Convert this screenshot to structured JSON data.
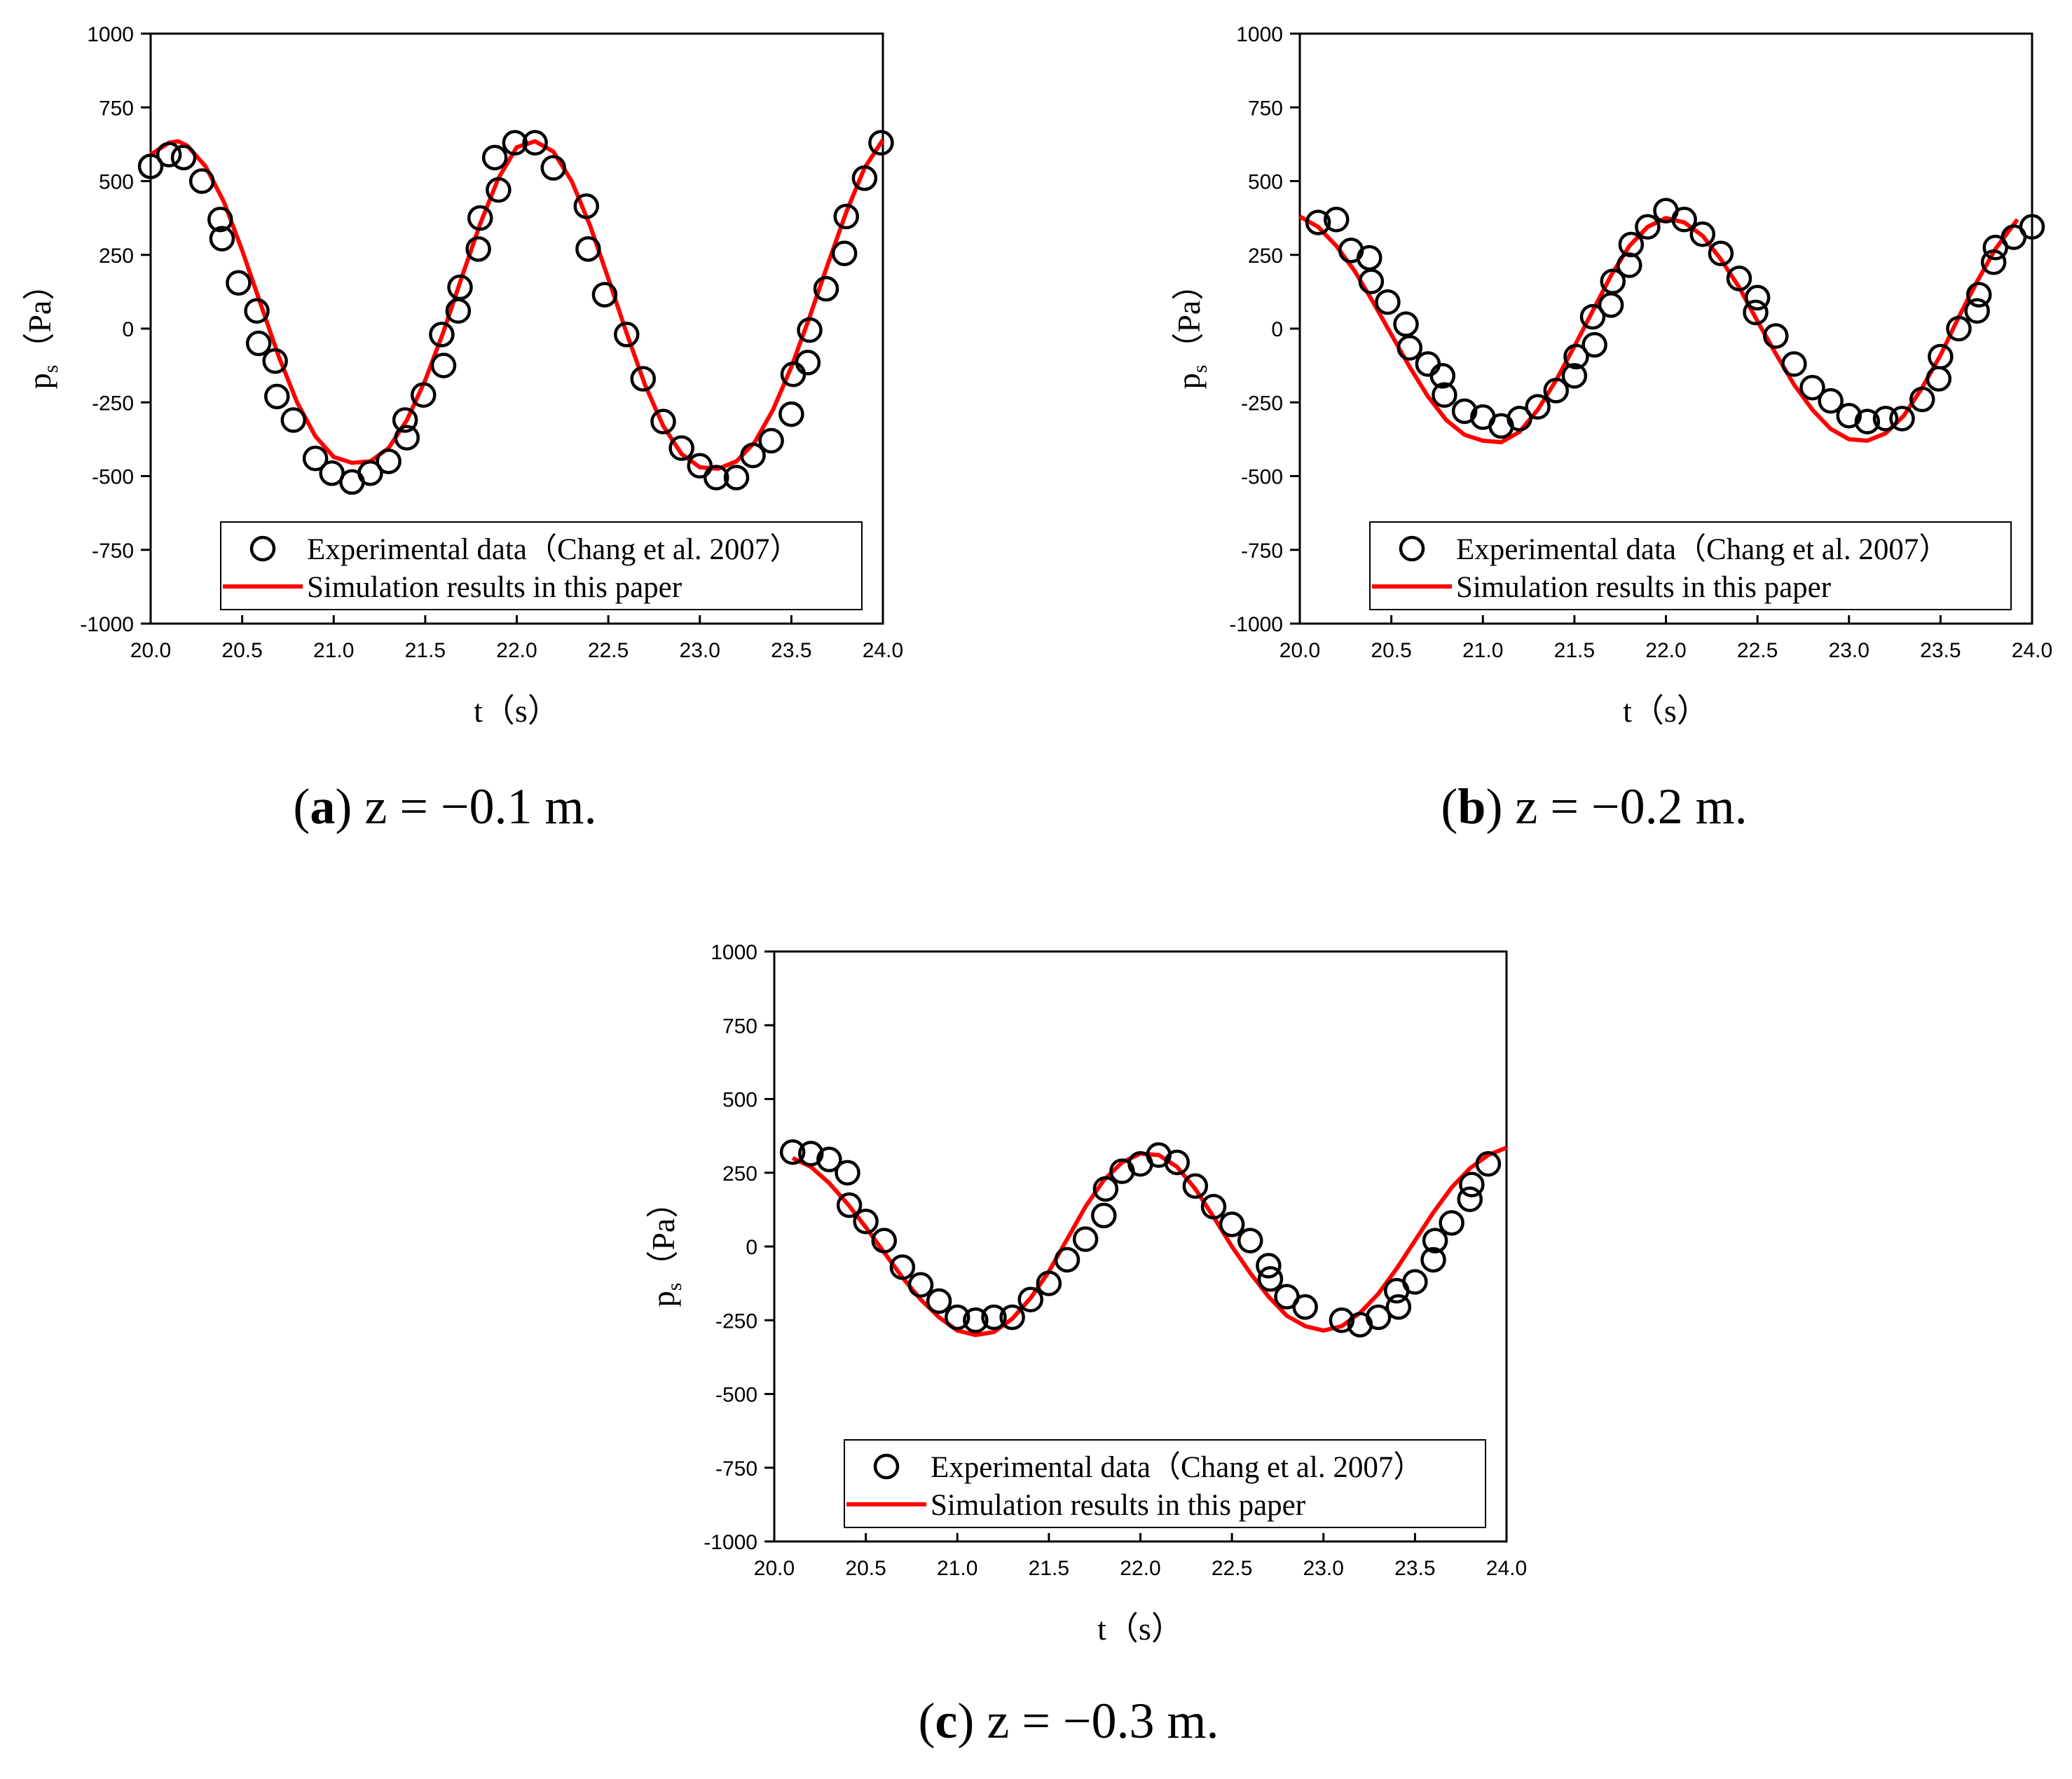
{
  "chart_data": [
    {
      "type": "line",
      "id": "a",
      "caption": {
        "label": "a",
        "text": " z = −0.1 m."
      },
      "xlabel": "t（s）",
      "ylabel_main": "p",
      "ylabel_sub": "s",
      "ylabel_unit": "（Pa）",
      "xlim": [
        20.0,
        24.0
      ],
      "ylim": [
        -1000,
        1000
      ],
      "xticks": [
        20.0,
        20.5,
        21.0,
        21.5,
        22.0,
        22.5,
        23.0,
        23.5,
        24.0
      ],
      "xtick_labels": [
        "20.0",
        "20.5",
        "21.0",
        "21.5",
        "22.0",
        "22.5",
        "23.0",
        "23.5",
        "24.0"
      ],
      "yticks": [
        -1000,
        -750,
        -500,
        -250,
        0,
        250,
        500,
        750,
        1000
      ],
      "ytick_labels": [
        "-1000",
        "-750",
        "-500",
        "-250",
        "0",
        "250",
        "500",
        "750",
        "1000"
      ],
      "legend": {
        "position": "bottom-right",
        "experimental": "Experimental data（Chang et al. 2007）",
        "simulation": "Simulation results in this paper"
      },
      "series": [
        {
          "name": "Experimental data（Chang et al. 2007）",
          "style": "markers",
          "color": "#000000",
          "x": [
            20.0,
            20.1,
            20.18,
            20.28,
            20.38,
            20.39,
            20.48,
            20.58,
            20.59,
            20.68,
            20.69,
            20.78,
            20.9,
            20.99,
            21.1,
            21.2,
            21.3,
            21.39,
            21.4,
            21.49,
            21.59,
            21.6,
            21.68,
            21.69,
            21.79,
            21.8,
            21.88,
            21.9,
            21.99,
            22.1,
            22.2,
            22.38,
            22.39,
            22.48,
            22.6,
            22.69,
            22.8,
            22.9,
            23.0,
            23.09,
            23.2,
            23.29,
            23.39,
            23.5,
            23.51,
            23.59,
            23.6,
            23.69,
            23.79,
            23.8,
            23.9,
            23.99
          ],
          "y": [
            550,
            590,
            580,
            500,
            370,
            305,
            155,
            60,
            -50,
            -110,
            -230,
            -310,
            -440,
            -490,
            -520,
            -490,
            -450,
            -310,
            -370,
            -225,
            -20,
            -125,
            60,
            140,
            270,
            375,
            580,
            470,
            630,
            630,
            545,
            415,
            270,
            115,
            -20,
            -170,
            -315,
            -405,
            -465,
            -505,
            -505,
            -430,
            -380,
            -290,
            -155,
            -115,
            -5,
            135,
            255,
            380,
            510,
            630
          ]
        },
        {
          "name": "Simulation results in this paper",
          "style": "line",
          "color": "#ff0000",
          "x": [
            20.0,
            20.1,
            20.15,
            20.2,
            20.3,
            20.4,
            20.5,
            20.6,
            20.7,
            20.8,
            20.9,
            21.0,
            21.1,
            21.2,
            21.3,
            21.4,
            21.5,
            21.6,
            21.7,
            21.8,
            21.9,
            22.0,
            22.1,
            22.2,
            22.3,
            22.4,
            22.5,
            22.6,
            22.7,
            22.8,
            22.9,
            23.0,
            23.1,
            23.2,
            23.3,
            23.4,
            23.5,
            23.6,
            23.7,
            23.8,
            23.9,
            24.0
          ],
          "y": [
            590,
            630,
            635,
            620,
            550,
            430,
            265,
            85,
            -95,
            -250,
            -365,
            -435,
            -455,
            -450,
            -405,
            -310,
            -175,
            -10,
            175,
            355,
            510,
            615,
            635,
            600,
            500,
            350,
            170,
            -15,
            -190,
            -330,
            -425,
            -470,
            -475,
            -450,
            -385,
            -275,
            -130,
            40,
            220,
            395,
            545,
            640
          ]
        }
      ]
    },
    {
      "type": "line",
      "id": "b",
      "caption": {
        "label": "b",
        "text": " z = −0.2 m."
      },
      "xlabel": "t（s）",
      "ylabel_main": "p",
      "ylabel_sub": "s",
      "ylabel_unit": "（Pa）",
      "xlim": [
        20.0,
        24.0
      ],
      "ylim": [
        -1000,
        1000
      ],
      "xticks": [
        20.0,
        20.5,
        21.0,
        21.5,
        22.0,
        22.5,
        23.0,
        23.5,
        24.0
      ],
      "xtick_labels": [
        "20.0",
        "20.5",
        "21.0",
        "21.5",
        "22.0",
        "22.5",
        "23.0",
        "23.5",
        "24.0"
      ],
      "yticks": [
        -1000,
        -750,
        -500,
        -250,
        0,
        250,
        500,
        750,
        1000
      ],
      "ytick_labels": [
        "-1000",
        "-750",
        "-500",
        "-250",
        "0",
        "250",
        "500",
        "750",
        "1000"
      ],
      "legend": {
        "position": "bottom-right",
        "experimental": "Experimental data（Chang et al. 2007）",
        "simulation": "Simulation results in this paper"
      },
      "series": [
        {
          "name": "Experimental data（Chang et al. 2007）",
          "style": "markers",
          "color": "#000000",
          "x": [
            20.1,
            20.2,
            20.28,
            20.38,
            20.39,
            20.48,
            20.58,
            20.6,
            20.7,
            20.78,
            20.79,
            20.9,
            21.0,
            21.1,
            21.2,
            21.3,
            21.4,
            21.5,
            21.51,
            21.6,
            21.61,
            21.7,
            21.71,
            21.8,
            21.81,
            21.9,
            22.0,
            22.1,
            22.2,
            22.3,
            22.4,
            22.49,
            22.5,
            22.6,
            22.7,
            22.8,
            22.9,
            23.0,
            23.1,
            23.2,
            23.29,
            23.4,
            23.49,
            23.5,
            23.6,
            23.7,
            23.71,
            23.79,
            23.8,
            23.9,
            24.0
          ],
          "y": [
            360,
            370,
            265,
            240,
            160,
            90,
            15,
            -65,
            -120,
            -160,
            -225,
            -280,
            -300,
            -330,
            -305,
            -265,
            -210,
            -160,
            -95,
            40,
            -55,
            80,
            160,
            215,
            285,
            345,
            400,
            370,
            320,
            255,
            170,
            55,
            105,
            -25,
            -120,
            -200,
            -245,
            -295,
            -315,
            -305,
            -305,
            -240,
            -170,
            -95,
            0,
            60,
            115,
            225,
            275,
            310,
            345
          ]
        },
        {
          "name": "Simulation results in this paper",
          "style": "line",
          "color": "#ff0000",
          "x": [
            20.0,
            20.1,
            20.2,
            20.3,
            20.4,
            20.5,
            20.6,
            20.7,
            20.8,
            20.9,
            21.0,
            21.1,
            21.2,
            21.3,
            21.4,
            21.5,
            21.6,
            21.7,
            21.8,
            21.9,
            22.0,
            22.1,
            22.2,
            22.3,
            22.4,
            22.5,
            22.6,
            22.7,
            22.8,
            22.9,
            23.0,
            23.1,
            23.2,
            23.3,
            23.4,
            23.5,
            23.6,
            23.7,
            23.8,
            23.92
          ],
          "y": [
            380,
            345,
            280,
            195,
            90,
            -20,
            -130,
            -230,
            -310,
            -360,
            -380,
            -385,
            -350,
            -275,
            -175,
            -60,
            60,
            180,
            280,
            345,
            375,
            360,
            315,
            235,
            140,
            25,
            -85,
            -190,
            -275,
            -340,
            -375,
            -380,
            -355,
            -295,
            -200,
            -90,
            40,
            160,
            270,
            370
          ]
        }
      ]
    },
    {
      "type": "line",
      "id": "c",
      "caption": {
        "label": "c",
        "text": " z = −0.3 m."
      },
      "xlabel": "t（s）",
      "ylabel_main": "p",
      "ylabel_sub": "s",
      "ylabel_unit": "（Pa）",
      "xlim": [
        20.0,
        24.0
      ],
      "ylim": [
        -1000,
        1000
      ],
      "xticks": [
        20.0,
        20.5,
        21.0,
        21.5,
        22.0,
        22.5,
        23.0,
        23.5,
        24.0
      ],
      "xtick_labels": [
        "20.0",
        "20.5",
        "21.0",
        "21.5",
        "22.0",
        "22.5",
        "23.0",
        "23.5",
        "24.0"
      ],
      "yticks": [
        -1000,
        -750,
        -500,
        -250,
        0,
        250,
        500,
        750,
        1000
      ],
      "ytick_labels": [
        "-1000",
        "-750",
        "-500",
        "-250",
        "0",
        "250",
        "500",
        "750",
        "1000"
      ],
      "legend": {
        "position": "bottom-right",
        "experimental": "Experimental data（Chang et al. 2007）",
        "simulation": "Simulation results in this paper"
      },
      "series": [
        {
          "name": "Experimental data（Chang et al. 2007）",
          "style": "markers",
          "color": "#000000",
          "x": [
            20.1,
            20.2,
            20.3,
            20.4,
            20.41,
            20.5,
            20.6,
            20.7,
            20.8,
            20.9,
            21.0,
            21.1,
            21.2,
            21.3,
            21.4,
            21.5,
            21.6,
            21.7,
            21.8,
            21.81,
            21.9,
            22.0,
            22.1,
            22.2,
            22.3,
            22.4,
            22.5,
            22.6,
            22.7,
            22.71,
            22.8,
            22.9,
            23.1,
            23.2,
            23.3,
            23.4,
            23.41,
            23.5,
            23.6,
            23.61,
            23.7,
            23.8,
            23.81,
            23.9
          ],
          "y": [
            320,
            315,
            295,
            250,
            140,
            85,
            20,
            -70,
            -130,
            -185,
            -240,
            -250,
            -240,
            -240,
            -180,
            -125,
            -45,
            25,
            105,
            195,
            255,
            280,
            310,
            285,
            205,
            135,
            75,
            20,
            -65,
            -110,
            -170,
            -205,
            -250,
            -265,
            -240,
            -150,
            -205,
            -120,
            -45,
            20,
            80,
            160,
            210,
            280
          ]
        },
        {
          "name": "Simulation results in this paper",
          "style": "line",
          "color": "#ff0000",
          "x": [
            20.1,
            20.2,
            20.3,
            20.4,
            20.5,
            20.6,
            20.7,
            20.8,
            20.9,
            21.0,
            21.1,
            21.2,
            21.3,
            21.4,
            21.5,
            21.6,
            21.7,
            21.8,
            21.9,
            22.0,
            22.1,
            22.2,
            22.3,
            22.4,
            22.5,
            22.6,
            22.7,
            22.8,
            22.9,
            23.0,
            23.1,
            23.2,
            23.3,
            23.4,
            23.5,
            23.6,
            23.7,
            23.8,
            23.9,
            24.0
          ],
          "y": [
            300,
            270,
            215,
            145,
            65,
            -20,
            -105,
            -180,
            -240,
            -285,
            -300,
            -290,
            -245,
            -175,
            -85,
            25,
            135,
            225,
            285,
            315,
            310,
            270,
            195,
            100,
            0,
            -90,
            -170,
            -235,
            -270,
            -285,
            -270,
            -225,
            -160,
            -75,
            20,
            115,
            200,
            265,
            310,
            335
          ]
        }
      ]
    }
  ]
}
